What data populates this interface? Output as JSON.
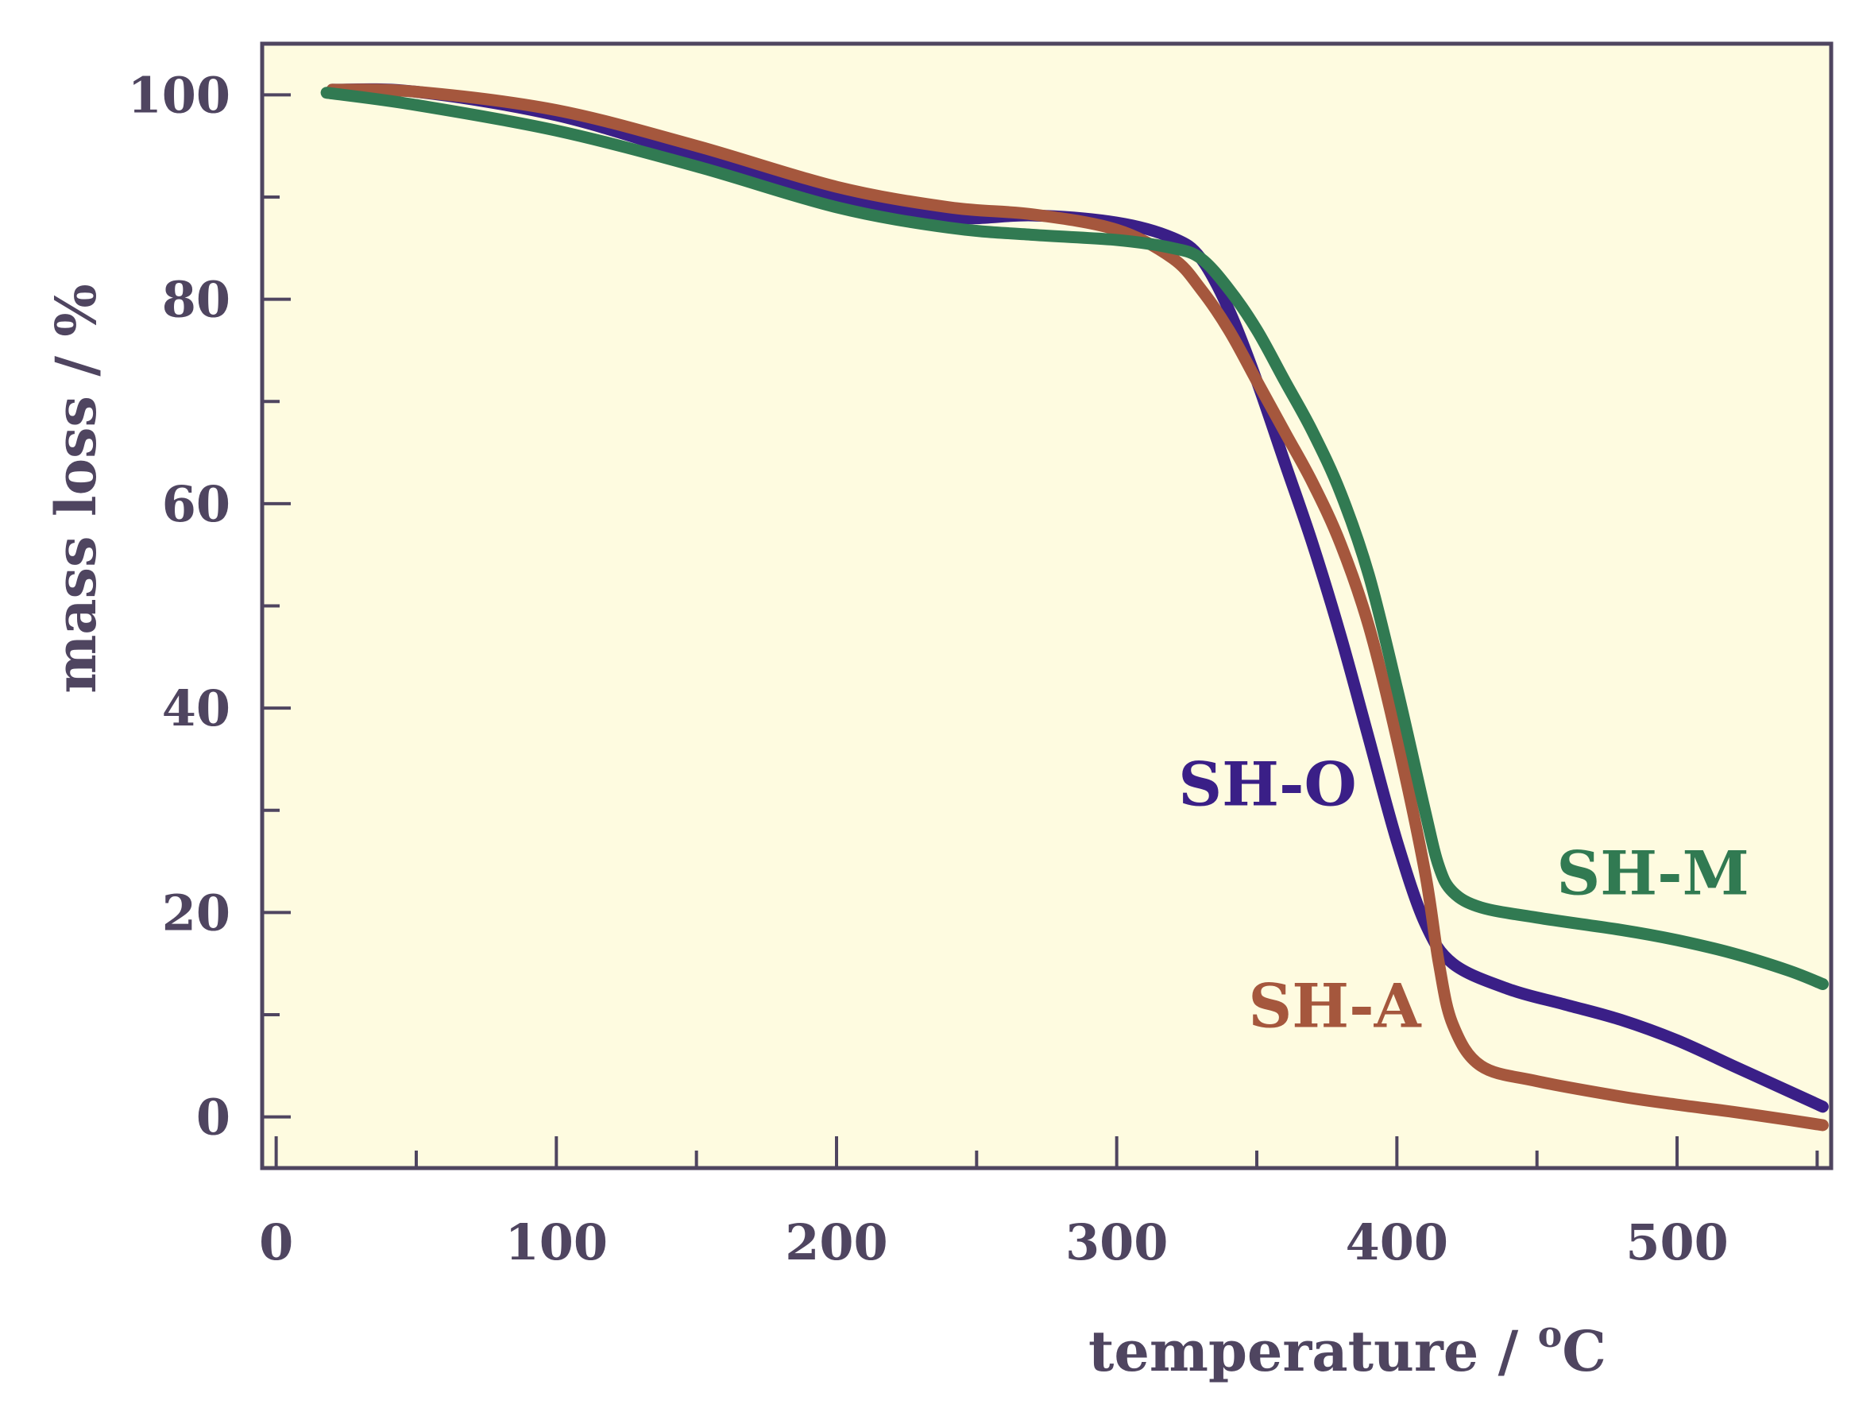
{
  "chart_data": {
    "type": "line",
    "title": "",
    "xlabel": "temperature / ",
    "xlabel_unit": "C",
    "xlabel_unit_superscript": "o",
    "ylabel": "mass loss / %",
    "xlim": [
      -5,
      555
    ],
    "ylim": [
      -5,
      105
    ],
    "xticks": [
      0,
      100,
      200,
      300,
      400,
      500
    ],
    "yticks": [
      0,
      20,
      40,
      60,
      80,
      100
    ],
    "colors": {
      "background": "#fefbe0",
      "axis": "#4f4560",
      "SH-O": "#3a1f87",
      "SH-A": "#a5573d",
      "SH-M": "#317a52"
    },
    "series": [
      {
        "name": "SH-O",
        "label": "SH-O",
        "x": [
          20,
          50,
          100,
          150,
          200,
          240,
          270,
          300,
          320,
          330,
          340,
          350,
          360,
          370,
          380,
          390,
          400,
          410,
          420,
          440,
          460,
          480,
          500,
          520,
          540,
          552
        ],
        "y": [
          100.5,
          100.3,
          98,
          94,
          90,
          88,
          88.2,
          87.5,
          86,
          84,
          79,
          72,
          64,
          56,
          47,
          37,
          27,
          19,
          15,
          12.5,
          11,
          9.5,
          7.5,
          5,
          2.5,
          1
        ]
      },
      {
        "name": "SH-A",
        "label": "SH-A",
        "x": [
          20,
          50,
          100,
          150,
          200,
          240,
          270,
          300,
          320,
          330,
          340,
          350,
          360,
          370,
          380,
          390,
          400,
          410,
          415,
          420,
          430,
          450,
          480,
          500,
          520,
          540,
          552
        ],
        "y": [
          100.5,
          100.3,
          98.5,
          95,
          91,
          89,
          88.3,
          86.8,
          84,
          81,
          77,
          72,
          67,
          62,
          56,
          48,
          37,
          24,
          15,
          9,
          5,
          3.5,
          2,
          1.2,
          0.5,
          -0.3,
          -0.8
        ]
      },
      {
        "name": "SH-M",
        "label": "SH-M",
        "x": [
          18,
          50,
          100,
          150,
          200,
          240,
          270,
          300,
          320,
          330,
          340,
          350,
          360,
          370,
          380,
          390,
          400,
          410,
          415,
          420,
          430,
          450,
          480,
          500,
          520,
          540,
          552
        ],
        "y": [
          100.2,
          99,
          96.5,
          93,
          89,
          87,
          86.3,
          85.8,
          85,
          84,
          81,
          77,
          72,
          67,
          61,
          53,
          42,
          30,
          24.5,
          22,
          20.5,
          19.5,
          18.3,
          17.3,
          16,
          14.3,
          13
        ]
      }
    ]
  }
}
